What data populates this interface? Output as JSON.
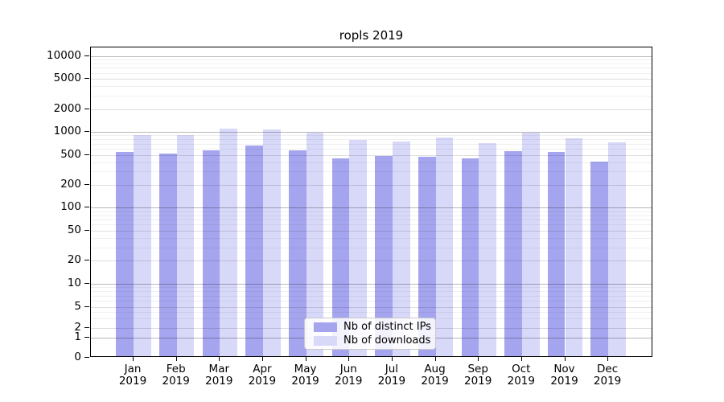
{
  "title": "ropls 2019",
  "chart_data": {
    "type": "bar",
    "title": "ropls 2019",
    "categories": [
      "Jan",
      "Feb",
      "Mar",
      "Apr",
      "May",
      "Jun",
      "Jul",
      "Aug",
      "Sep",
      "Oct",
      "Nov",
      "Dec"
    ],
    "year": "2019",
    "series": [
      {
        "name": "Nb of distinct IPs",
        "color": "#a5a5ef",
        "values": [
          520,
          495,
          550,
          630,
          548,
          430,
          460,
          445,
          425,
          530,
          525,
          390
        ]
      },
      {
        "name": "Nb of downloads",
        "color": "#d8d8f9",
        "values": [
          865,
          865,
          1065,
          1020,
          940,
          740,
          705,
          815,
          680,
          925,
          780,
          688
        ]
      }
    ],
    "xlabel": "",
    "ylabel": "",
    "yscale": "log (compressed linear segment near 0)",
    "yticks": [
      0,
      1,
      2,
      5,
      10,
      20,
      50,
      100,
      200,
      500,
      1000,
      2000,
      5000,
      10000
    ],
    "ylim": [
      0,
      14000
    ],
    "grid": "on",
    "legend_position": "lower center"
  },
  "legend": {
    "items": [
      {
        "label": "Nb of distinct IPs",
        "color": "#a5a5ef"
      },
      {
        "label": "Nb of downloads",
        "color": "#d8d8f9"
      }
    ]
  },
  "colors": {
    "bar_ips": "#a5a5ef",
    "bar_downloads": "#d8d8f9",
    "grid_decade": "#b8b8b8",
    "grid_mid": "#dedede",
    "grid_minor": "#efefef",
    "spine": "#000000",
    "text": "#000000",
    "background": "#ffffff"
  }
}
